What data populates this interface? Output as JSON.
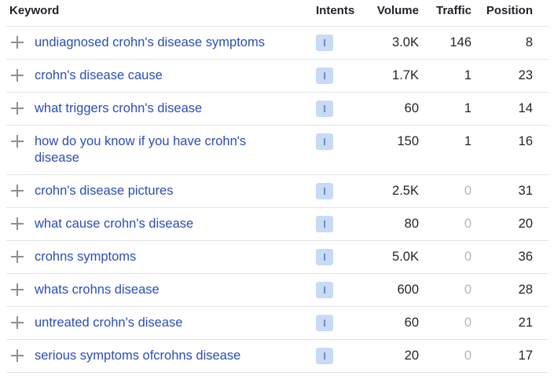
{
  "header": {
    "keyword": "Keyword",
    "intents": "Intents",
    "volume": "Volume",
    "traffic": "Traffic",
    "position": "Position"
  },
  "rows": [
    {
      "keyword": "undiagnosed crohn's disease symptoms",
      "intent": "I",
      "volume": "3.0K",
      "traffic": "146",
      "position": "8"
    },
    {
      "keyword": "crohn's disease cause",
      "intent": "I",
      "volume": "1.7K",
      "traffic": "1",
      "position": "23"
    },
    {
      "keyword": "what triggers crohn's disease",
      "intent": "I",
      "volume": "60",
      "traffic": "1",
      "position": "14"
    },
    {
      "keyword": "how do you know if you have crohn's disease",
      "intent": "I",
      "volume": "150",
      "traffic": "1",
      "position": "16"
    },
    {
      "keyword": "crohn's disease pictures",
      "intent": "I",
      "volume": "2.5K",
      "traffic": "0",
      "position": "31"
    },
    {
      "keyword": "what cause crohn's disease",
      "intent": "I",
      "volume": "80",
      "traffic": "0",
      "position": "20"
    },
    {
      "keyword": "crohns symptoms",
      "intent": "I",
      "volume": "5.0K",
      "traffic": "0",
      "position": "36"
    },
    {
      "keyword": "whats crohns disease",
      "intent": "I",
      "volume": "600",
      "traffic": "0",
      "position": "28"
    },
    {
      "keyword": "untreated crohn's disease",
      "intent": "I",
      "volume": "60",
      "traffic": "0",
      "position": "21"
    },
    {
      "keyword": "serious symptoms ofcrohns disease",
      "intent": "I",
      "volume": "20",
      "traffic": "0",
      "position": "17"
    }
  ],
  "colors": {
    "keyword_link": "#2b4eb5",
    "intent_badge_bg": "#c8daf5",
    "zero_traffic": "#b3b7bd",
    "row_divider": "#e3e5ea"
  }
}
